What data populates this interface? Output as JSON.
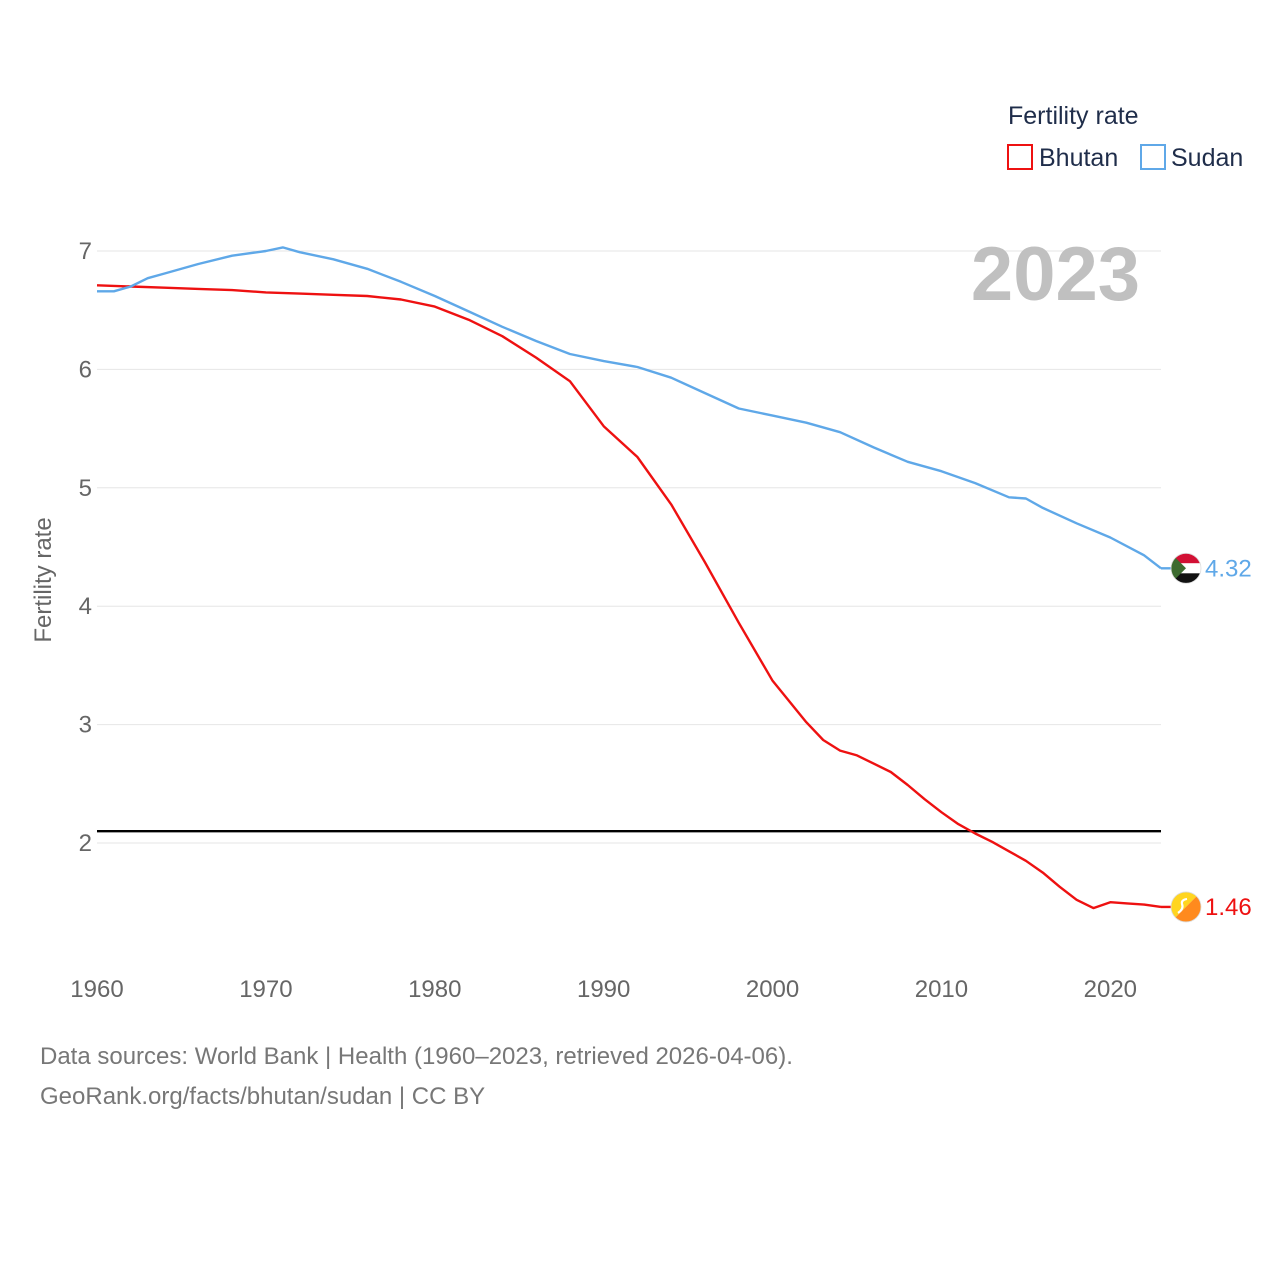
{
  "chart_data": {
    "type": "line",
    "title": "Fertility rate",
    "year_label": "2023",
    "ylabel": "Fertility rate",
    "xlabel": "",
    "xlim": [
      1960,
      2023
    ],
    "ylim": [
      1.0,
      7.3
    ],
    "x_ticks": [
      "1960",
      "1970",
      "1980",
      "1990",
      "2000",
      "2010",
      "2020"
    ],
    "y_ticks": [
      "2",
      "3",
      "4",
      "5",
      "6",
      "7"
    ],
    "reference_line": {
      "value": 2.1,
      "color": "#000000"
    },
    "series": [
      {
        "name": "Bhutan",
        "color": "#ee1111",
        "end_label": "1.46",
        "flag": "bhutan-flag",
        "x": [
          1960,
          1962,
          1964,
          1966,
          1968,
          1970,
          1972,
          1974,
          1976,
          1978,
          1980,
          1982,
          1984,
          1986,
          1988,
          1990,
          1992,
          1994,
          1996,
          1998,
          2000,
          2002,
          2003,
          2004,
          2005,
          2006,
          2007,
          2008,
          2009,
          2010,
          2011,
          2012,
          2013,
          2014,
          2015,
          2016,
          2017,
          2018,
          2019,
          2020,
          2021,
          2022,
          2023
        ],
        "values": [
          6.71,
          6.7,
          6.69,
          6.68,
          6.67,
          6.65,
          6.64,
          6.63,
          6.62,
          6.59,
          6.53,
          6.42,
          6.28,
          6.1,
          5.9,
          5.52,
          5.26,
          4.86,
          4.37,
          3.86,
          3.37,
          3.02,
          2.87,
          2.78,
          2.74,
          2.67,
          2.6,
          2.49,
          2.37,
          2.26,
          2.16,
          2.08,
          2.01,
          1.93,
          1.85,
          1.75,
          1.63,
          1.52,
          1.45,
          1.5,
          1.49,
          1.48,
          1.46
        ]
      },
      {
        "name": "Sudan",
        "color": "#5fa8e8",
        "end_label": "4.32",
        "flag": "sudan-flag",
        "x": [
          1960,
          1961,
          1962,
          1963,
          1964,
          1966,
          1968,
          1970,
          1971,
          1972,
          1974,
          1976,
          1978,
          1980,
          1982,
          1984,
          1986,
          1988,
          1990,
          1992,
          1994,
          1996,
          1998,
          2000,
          2002,
          2004,
          2006,
          2008,
          2010,
          2012,
          2014,
          2015,
          2016,
          2018,
          2020,
          2022,
          2023
        ],
        "values": [
          6.66,
          6.66,
          6.7,
          6.77,
          6.81,
          6.89,
          6.96,
          7.0,
          7.03,
          6.99,
          6.93,
          6.85,
          6.74,
          6.62,
          6.49,
          6.36,
          6.24,
          6.13,
          6.07,
          6.02,
          5.93,
          5.8,
          5.67,
          5.61,
          5.55,
          5.47,
          5.34,
          5.22,
          5.14,
          5.04,
          4.92,
          4.91,
          4.83,
          4.7,
          4.58,
          4.43,
          4.32
        ]
      }
    ]
  },
  "footer": {
    "source": "Data sources: World Bank | Health (1960–2023, retrieved 2026-04-06).",
    "credit": "GeoRank.org/facts/bhutan/sudan | CC BY"
  }
}
